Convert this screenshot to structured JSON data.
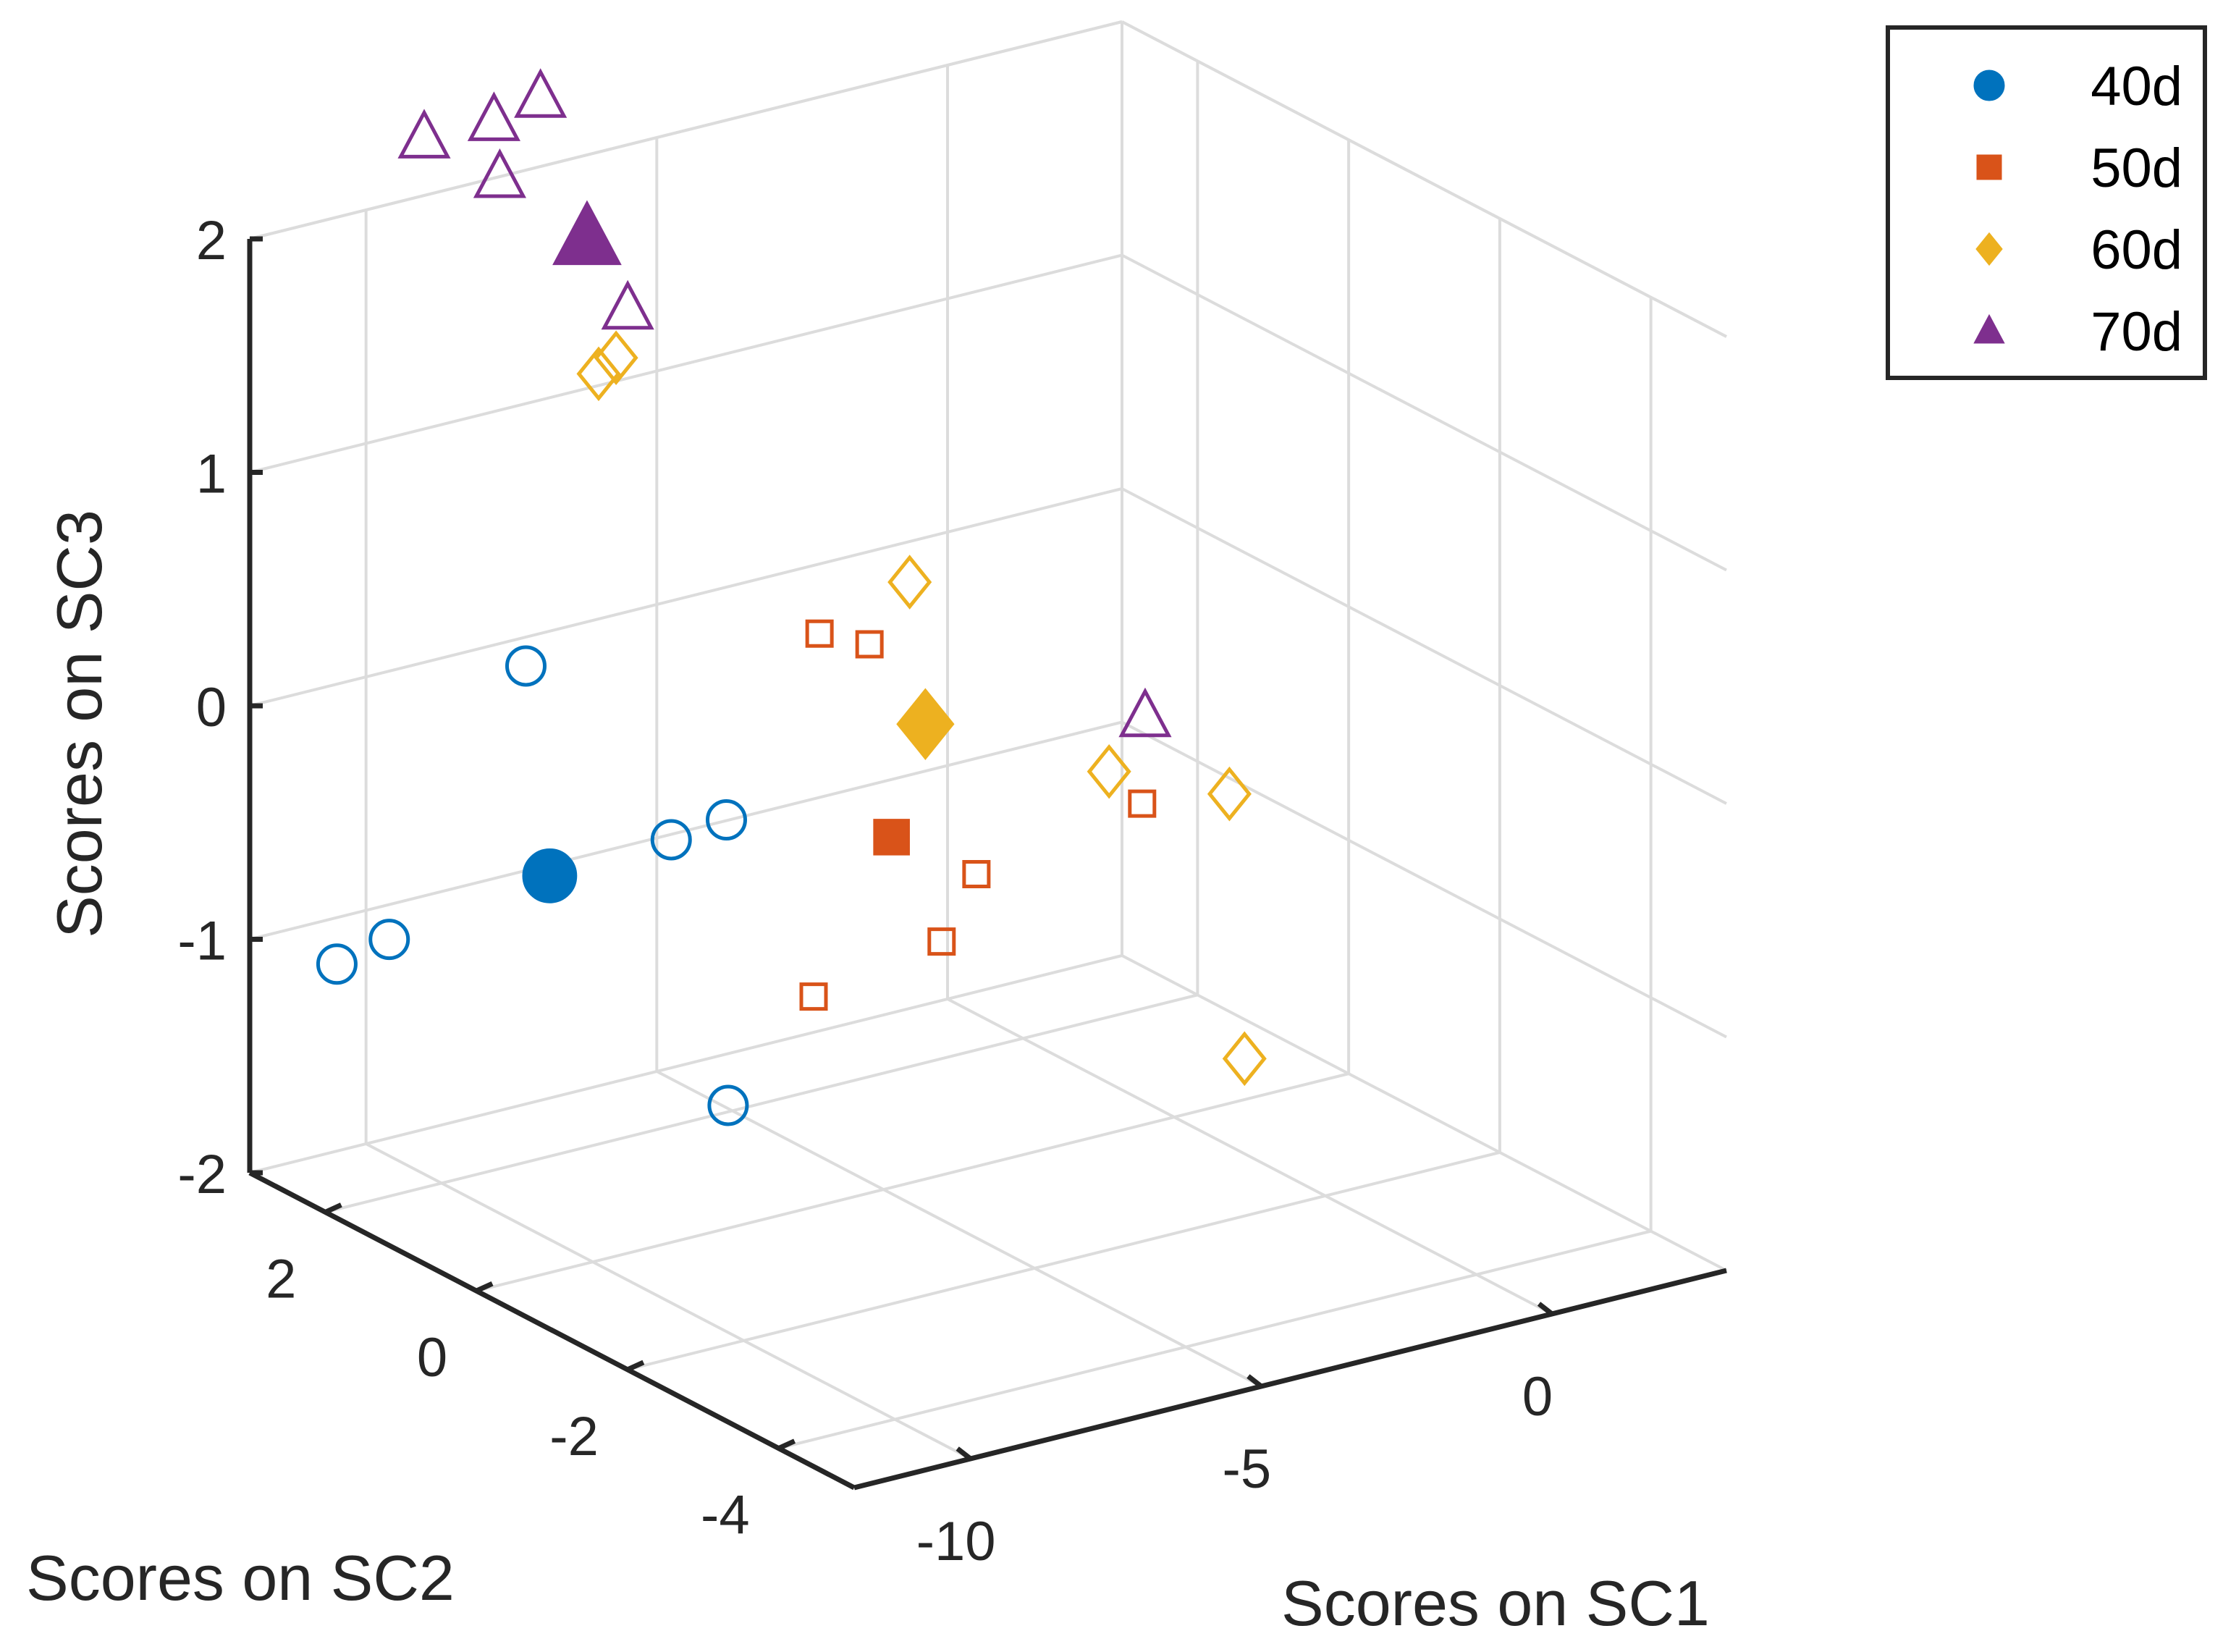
{
  "chart_data": {
    "type": "scatter3d",
    "xlabel": "Scores on SC1",
    "ylabel": "Scores on SC2",
    "zlabel": "Scores on SC3",
    "xlim": [
      -12,
      3
    ],
    "ylim": [
      -5,
      3
    ],
    "zlim": [
      -2,
      2
    ],
    "xticks": [
      -10,
      -5,
      0
    ],
    "yticks": [
      2,
      0,
      -2,
      -4
    ],
    "zticks": [
      2,
      1,
      0,
      -1,
      -2
    ],
    "grid": true,
    "legend_position": "top-right",
    "series": [
      {
        "name": "40d",
        "color": "#0072BD",
        "marker": "circle",
        "points": [
          [
            -9.2,
            1.5,
            0.25
          ],
          [
            -9.0,
            -1.0,
            0.0
          ],
          [
            -8.0,
            0.5,
            -0.4
          ],
          [
            -10.9,
            2.0,
            -0.9
          ],
          [
            -9.1,
            -1.1,
            -1.2
          ],
          [
            -11.8,
            2.0,
            -0.95
          ]
        ],
        "center": [
          -9.7,
          0.8,
          -0.5
        ]
      },
      {
        "name": "50d",
        "color": "#D95319",
        "marker": "square",
        "points": [
          [
            -5.5,
            -0.2,
            0.4
          ],
          [
            -4.8,
            1.0,
            0.2
          ],
          [
            -4.0,
            0.0,
            -1.0
          ],
          [
            -3.8,
            -2.5,
            0.0
          ],
          [
            -6.0,
            -2.0,
            -0.25
          ],
          [
            -7.5,
            -1.0,
            -0.85
          ]
        ],
        "center": [
          -5.9,
          -0.8,
          -0.3
        ]
      },
      {
        "name": "60d",
        "color": "#EDB120",
        "marker": "diamond",
        "points": [
          [
            -6.0,
            3.0,
            1.05
          ],
          [
            -5.7,
            3.0,
            1.1
          ],
          [
            -2.6,
            1.5,
            0.2
          ],
          [
            -0.6,
            0.4,
            -0.55
          ],
          [
            0.3,
            -0.5,
            -0.55
          ],
          [
            0.3,
            -0.7,
            -1.65
          ]
        ],
        "center": [
          -2.2,
          1.6,
          -0.45
        ]
      },
      {
        "name": "70d",
        "color": "#7E2F8E",
        "marker": "triangle",
        "points": [
          [
            -9.0,
            3.0,
            2.25
          ],
          [
            -7.8,
            3.0,
            2.25
          ],
          [
            -7.0,
            3.0,
            2.3
          ],
          [
            -7.7,
            3.0,
            2.0
          ],
          [
            -5.5,
            3.0,
            1.3
          ],
          [
            -0.5,
            0.0,
            -0.25
          ]
        ],
        "center": [
          -6.2,
          3.0,
          1.65
        ]
      }
    ]
  }
}
